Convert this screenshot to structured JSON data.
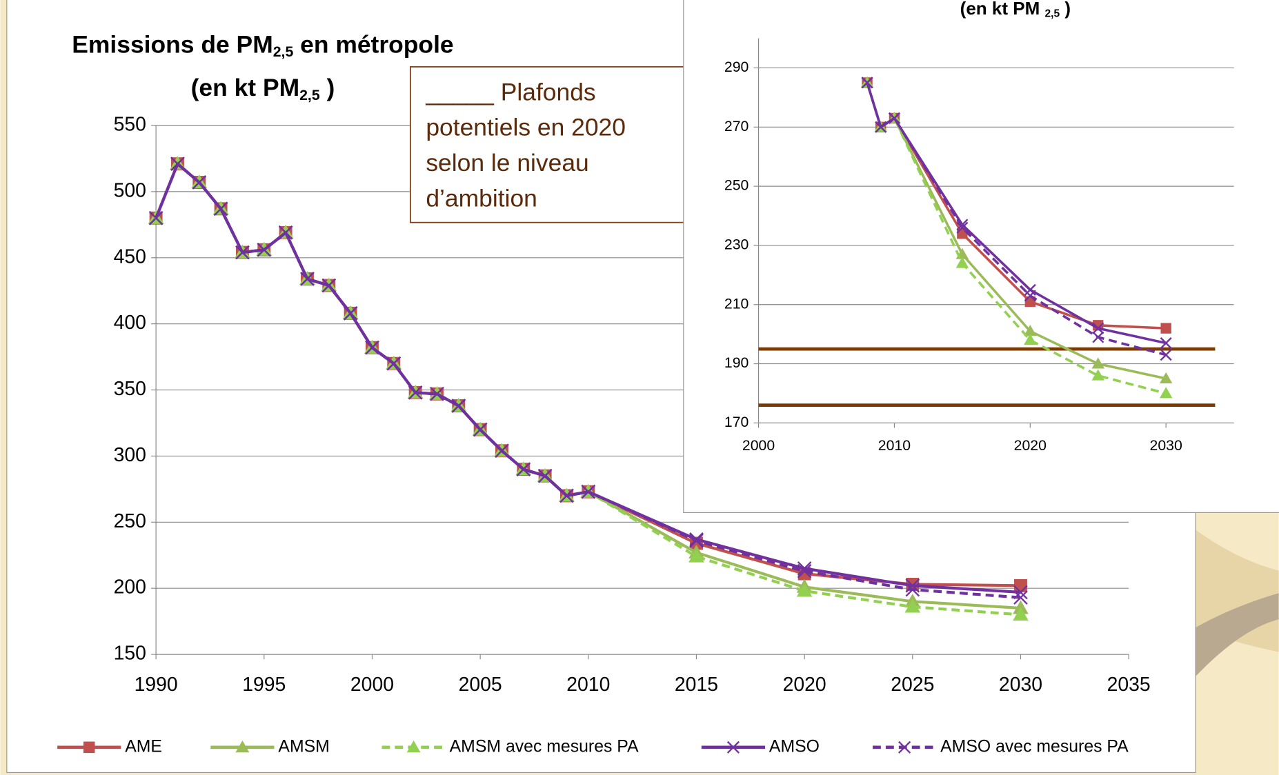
{
  "chart_data": [
    {
      "type": "line",
      "title": [
        "Emissions de PM",
        "2,5",
        " en métropole"
      ],
      "subtitle": [
        "(en kt PM",
        "2,5",
        " )"
      ],
      "annotation": [
        "_____ Plafonds",
        "potentiels en 2020",
        "selon le niveau",
        "d’ambition"
      ],
      "x": [
        1990,
        1991,
        1992,
        1993,
        1994,
        1995,
        1996,
        1997,
        1998,
        1999,
        2000,
        2001,
        2002,
        2003,
        2004,
        2005,
        2006,
        2007,
        2008,
        2009,
        2010,
        2015,
        2020,
        2025,
        2030
      ],
      "xlim": [
        1990,
        2035
      ],
      "xticks": [
        1990,
        1995,
        2000,
        2005,
        2010,
        2015,
        2020,
        2025,
        2030,
        2035
      ],
      "ylim": [
        150,
        550
      ],
      "yticks": [
        150,
        200,
        250,
        300,
        350,
        400,
        450,
        500,
        550
      ],
      "grid": true,
      "legend": "bottom",
      "series": [
        {
          "name": "AME",
          "color": "#c0504d",
          "marker": "square",
          "dash": false,
          "values": [
            480,
            521,
            507,
            487,
            454,
            456,
            469,
            434,
            429,
            408,
            382,
            370,
            348,
            347,
            338,
            320,
            304,
            290,
            285,
            270,
            273,
            234,
            211,
            203,
            202
          ]
        },
        {
          "name": "AMSM",
          "color": "#9bbb59",
          "marker": "triangle",
          "dash": false,
          "values": [
            480,
            521,
            507,
            487,
            454,
            456,
            469,
            434,
            429,
            408,
            382,
            370,
            348,
            347,
            338,
            320,
            304,
            290,
            285,
            270,
            273,
            227,
            201,
            190,
            185
          ]
        },
        {
          "name": "AMSM avec mesures PA",
          "color": "#92d050",
          "marker": "triangle",
          "dash": true,
          "values": [
            480,
            521,
            507,
            487,
            454,
            456,
            469,
            434,
            429,
            408,
            382,
            370,
            348,
            347,
            338,
            320,
            304,
            290,
            285,
            270,
            273,
            224,
            198,
            186,
            180
          ]
        },
        {
          "name": "AMSO",
          "color": "#7030a0",
          "marker": "x",
          "dash": false,
          "values": [
            480,
            521,
            507,
            487,
            454,
            456,
            469,
            434,
            429,
            408,
            382,
            370,
            348,
            347,
            338,
            320,
            304,
            290,
            285,
            270,
            273,
            237,
            215,
            202,
            197
          ]
        },
        {
          "name": "AMSO avec mesures PA",
          "color": "#7030a0",
          "marker": "x",
          "dash": true,
          "values": [
            480,
            521,
            507,
            487,
            454,
            456,
            469,
            434,
            429,
            408,
            382,
            370,
            348,
            347,
            338,
            320,
            304,
            290,
            285,
            270,
            273,
            236,
            213,
            199,
            193
          ]
        }
      ]
    },
    {
      "type": "line",
      "subtitle": [
        "(en kt PM ",
        "2,5",
        " )"
      ],
      "x": [
        2008,
        2009,
        2010,
        2015,
        2020,
        2025,
        2030
      ],
      "xlim": [
        2000,
        2035
      ],
      "xticks": [
        2000,
        2010,
        2020,
        2030
      ],
      "ylim": [
        170,
        300
      ],
      "yticks": [
        170,
        190,
        210,
        230,
        250,
        270,
        290
      ],
      "grid": true,
      "hlines": [
        195,
        176
      ],
      "hline_color": "#7b3a00",
      "series": [
        {
          "name": "AME",
          "color": "#c0504d",
          "marker": "square",
          "dash": false,
          "values": [
            285,
            270,
            273,
            234,
            211,
            203,
            202
          ]
        },
        {
          "name": "AMSM",
          "color": "#9bbb59",
          "marker": "triangle",
          "dash": false,
          "values": [
            285,
            270,
            273,
            227,
            201,
            190,
            185
          ]
        },
        {
          "name": "AMSM avec mesures PA",
          "color": "#92d050",
          "marker": "triangle",
          "dash": true,
          "values": [
            285,
            270,
            273,
            224,
            198,
            186,
            180
          ]
        },
        {
          "name": "AMSO",
          "color": "#7030a0",
          "marker": "x",
          "dash": false,
          "values": [
            285,
            270,
            273,
            237,
            215,
            202,
            197
          ]
        },
        {
          "name": "AMSO avec mesures PA",
          "color": "#7030a0",
          "marker": "x",
          "dash": true,
          "values": [
            285,
            270,
            273,
            236,
            213,
            199,
            193
          ]
        }
      ]
    }
  ]
}
